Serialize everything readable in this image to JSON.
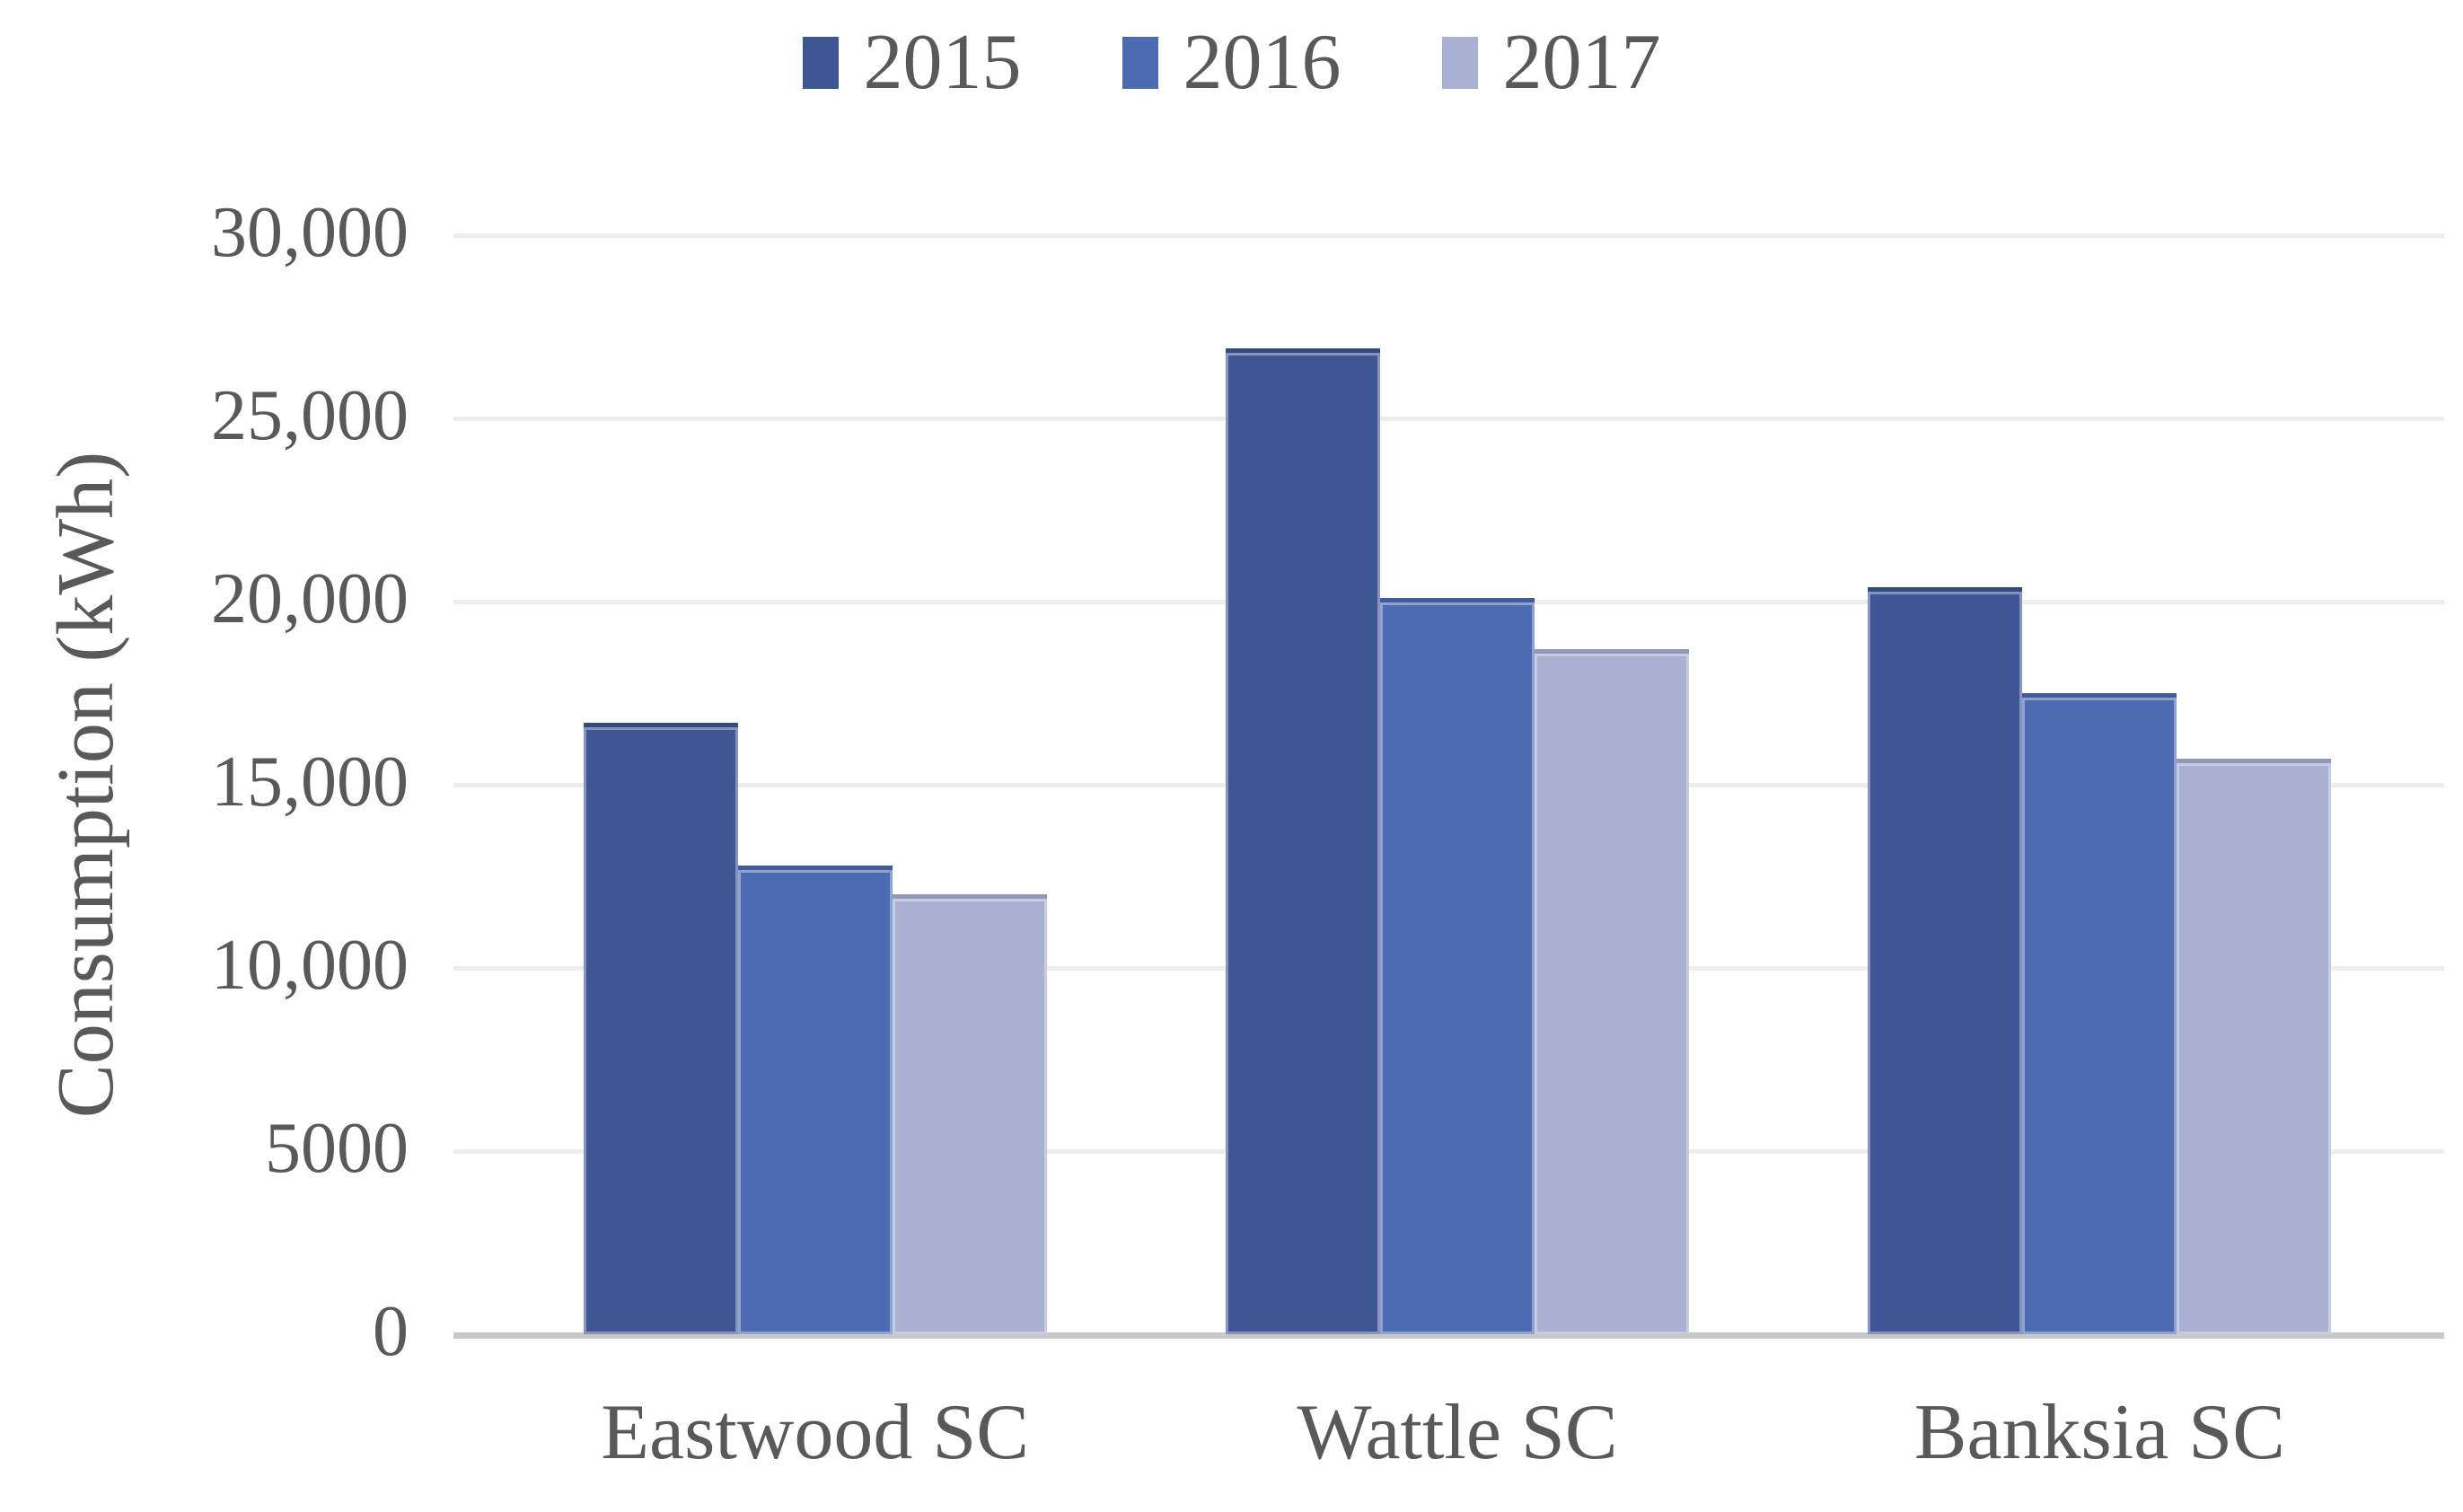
{
  "chart_data": {
    "type": "bar",
    "title": "",
    "categories": [
      "Eastwood SC",
      "Wattle SC",
      "Banksia SC"
    ],
    "series": [
      {
        "name": "2015",
        "color": "#3E5693",
        "values": [
          16700,
          26900,
          20400
        ]
      },
      {
        "name": "2016",
        "color": "#4C6BB2",
        "values": [
          12800,
          20100,
          17500
        ]
      },
      {
        "name": "2017",
        "color": "#AAB1D3",
        "values": [
          12000,
          18700,
          15700
        ]
      }
    ],
    "xlabel": "",
    "ylabel": "Consumption (kWh)",
    "ylim": [
      0,
      30000
    ],
    "ytick_step": 5000,
    "ytick_labels_top_to_bottom": [
      "30,000",
      "25,000",
      "20,000",
      "15,000",
      "10,000",
      "5000",
      "0"
    ],
    "legend_position": "top-center",
    "grid": "horizontal",
    "background_color": "#FFFFFF",
    "text_color": "#595959",
    "gridline_color": "#EDEDED",
    "axis_line_color": "#C8C8C8"
  }
}
